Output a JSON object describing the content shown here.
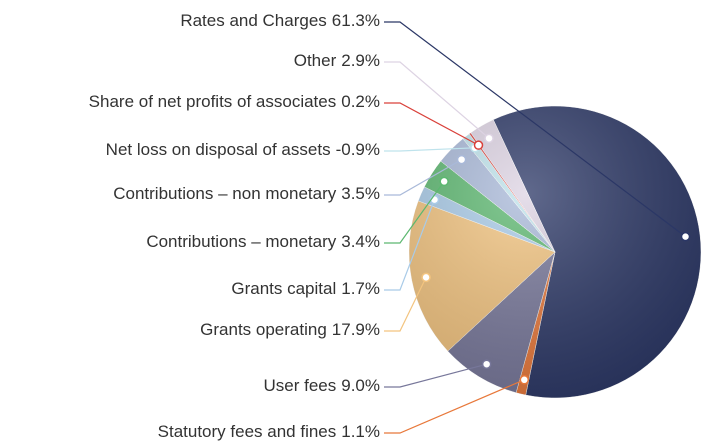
{
  "chart_data": {
    "type": "pie",
    "categories": [
      "Rates and Charges",
      "Statutory fees and fines",
      "User fees",
      "Grants operating",
      "Grants capital",
      "Contributions – monetary",
      "Contributions – non monetary",
      "Net loss on disposal of assets",
      "Share of net profits of associates",
      "Other"
    ],
    "values": [
      61.3,
      1.1,
      9.0,
      17.9,
      1.7,
      3.4,
      3.5,
      -0.9,
      0.2,
      2.9
    ],
    "value_labels": [
      "61.3%",
      "1.1%",
      "9.0%",
      "17.9%",
      "1.7%",
      "3.4%",
      "3.5%",
      "-0.9%",
      "0.2%",
      "2.9%"
    ],
    "colors": [
      "#2b3766",
      "#e8783a",
      "#77779a",
      "#f3c47f",
      "#a9cbe8",
      "#5cb870",
      "#a9b9d9",
      "#bfe3ec",
      "#d9403a",
      "#ddd3e3"
    ]
  }
}
